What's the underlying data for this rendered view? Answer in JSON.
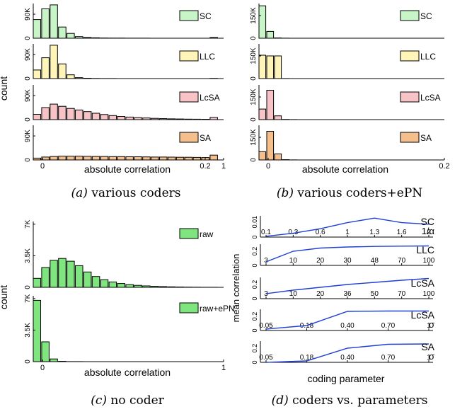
{
  "captions": {
    "a": {
      "letter": "(a)",
      "text": "various coders"
    },
    "b": {
      "letter": "(b)",
      "text": "various coders+ePN"
    },
    "c": {
      "letter": "(c)",
      "text": "no coder"
    },
    "d": {
      "letter": "(d)",
      "text": "coders vs. parameters"
    }
  },
  "chart_data": [
    {
      "id": "a",
      "type": "bar",
      "xlabel": "absolute correlation",
      "ylabel": "count",
      "x_ticks": [
        "0",
        "0.2",
        "1"
      ],
      "panels": [
        {
          "name": "SC",
          "color": "#c8f5c8",
          "ylim": [
            0,
            130000
          ],
          "y_tick_labels": [
            "0",
            "90K"
          ],
          "y_tick_values": [
            0,
            90000
          ],
          "values": [
            70000,
            110000,
            125000,
            42000,
            18000,
            6000,
            3000,
            1500,
            900,
            600,
            400,
            300,
            200,
            150,
            100,
            80,
            60,
            50,
            40,
            30,
            20,
            3000
          ]
        },
        {
          "name": "LLC",
          "color": "#fff5b8",
          "ylim": [
            0,
            130000
          ],
          "y_tick_labels": [
            "0",
            "90K"
          ],
          "y_tick_values": [
            0,
            90000
          ],
          "values": [
            32000,
            78000,
            125000,
            55000,
            14000,
            3500,
            1200,
            600,
            300,
            150,
            100,
            80,
            60,
            40,
            30,
            20,
            15,
            10,
            8,
            5,
            3,
            800
          ]
        },
        {
          "name": "LcSA",
          "color": "#f7c3c6",
          "ylim": [
            0,
            130000
          ],
          "y_tick_labels": [
            "0",
            "90K"
          ],
          "y_tick_values": [
            0,
            90000
          ],
          "values": [
            20000,
            45000,
            58000,
            50000,
            42000,
            36000,
            30000,
            24000,
            19000,
            15000,
            12000,
            9500,
            7500,
            6000,
            4800,
            3800,
            3000,
            2400,
            1900,
            1500,
            1200,
            8000
          ]
        },
        {
          "name": "SA",
          "color": "#f5bf8d",
          "ylim": [
            0,
            130000
          ],
          "y_tick_labels": [
            "0",
            "90K"
          ],
          "y_tick_values": [
            0,
            90000
          ],
          "values": [
            7000,
            11000,
            13000,
            14000,
            14000,
            14000,
            13500,
            13000,
            13000,
            12500,
            12500,
            12000,
            12000,
            11500,
            11000,
            11000,
            10500,
            10000,
            10000,
            9500,
            9000,
            18000
          ]
        }
      ]
    },
    {
      "id": "b",
      "type": "bar",
      "xlabel": "absolute correlation",
      "x_ticks": [
        "0",
        "0.2"
      ],
      "panels": [
        {
          "name": "SC",
          "color": "#c8f5c8",
          "ylim": [
            0,
            230000
          ],
          "y_tick_labels": [
            "0",
            "150K"
          ],
          "y_tick_values": [
            0,
            150000
          ],
          "values": [
            215000,
            45000,
            2000,
            300,
            100,
            50,
            20,
            10,
            5,
            0,
            0,
            0,
            0,
            0,
            0,
            0,
            0,
            0,
            0,
            0,
            0,
            0,
            0,
            0
          ]
        },
        {
          "name": "LLC",
          "color": "#fff5b8",
          "ylim": [
            0,
            230000
          ],
          "y_tick_labels": [
            "0",
            "150K"
          ],
          "y_tick_values": [
            0,
            150000
          ],
          "values": [
            155000,
            150000,
            150000,
            300,
            100,
            50,
            20,
            10,
            5,
            0,
            0,
            0,
            0,
            0,
            0,
            0,
            0,
            0,
            0,
            0,
            0,
            0,
            0,
            0
          ]
        },
        {
          "name": "LcSA",
          "color": "#f7c3c6",
          "ylim": [
            0,
            230000
          ],
          "y_tick_labels": [
            "0",
            "150K"
          ],
          "y_tick_values": [
            0,
            150000
          ],
          "values": [
            70000,
            195000,
            25000,
            1500,
            300,
            100,
            50,
            20,
            10,
            0,
            0,
            0,
            0,
            0,
            0,
            0,
            0,
            0,
            0,
            0,
            0,
            0,
            0,
            0
          ]
        },
        {
          "name": "SA",
          "color": "#f5bf8d",
          "ylim": [
            0,
            230000
          ],
          "y_tick_labels": [
            "0",
            "150K"
          ],
          "y_tick_values": [
            0,
            150000
          ],
          "values": [
            55000,
            190000,
            40000,
            2000,
            400,
            100,
            50,
            20,
            10,
            0,
            0,
            0,
            0,
            0,
            0,
            0,
            0,
            0,
            0,
            0,
            0,
            0,
            0,
            0
          ]
        }
      ]
    },
    {
      "id": "c",
      "type": "bar",
      "xlabel": "absolute correlation",
      "ylabel": "count",
      "x_ticks": [
        "0",
        "1"
      ],
      "panels": [
        {
          "name": "raw",
          "color": "#7fe67f",
          "ylim": [
            0,
            7300
          ],
          "y_tick_labels": [
            "0",
            "3.5K",
            "7K"
          ],
          "y_tick_values": [
            0,
            3500,
            7000
          ],
          "values": [
            1000,
            2200,
            3000,
            3200,
            2900,
            2400,
            1700,
            1200,
            850,
            600,
            420,
            300,
            220,
            160,
            110,
            80,
            55,
            40,
            25,
            15,
            10,
            5,
            3,
            2,
            1
          ]
        },
        {
          "name": "raw+ePN",
          "color": "#7fe67f",
          "ylim": [
            0,
            7300
          ],
          "y_tick_labels": [
            "0",
            "3.5K",
            "7K"
          ],
          "y_tick_values": [
            0,
            3500,
            7000
          ],
          "values": [
            6800,
            2200,
            300,
            40,
            10,
            5,
            2,
            1,
            0,
            0,
            0,
            0,
            0,
            0,
            0,
            0,
            0,
            0,
            0,
            0,
            0,
            0,
            0,
            0,
            0
          ]
        }
      ]
    },
    {
      "id": "d",
      "type": "line",
      "xlabel": "coding parameter",
      "ylabel": "mean correlation",
      "color": "#1f3fd6",
      "panels": [
        {
          "name": "SC",
          "param_label": "1/α",
          "y_tick_labels": [
            "0",
            "0.01"
          ],
          "y_tick_values": [
            0,
            0.01
          ],
          "ylim": [
            0,
            0.014
          ],
          "ticks": [
            "0.1",
            "0.3",
            "0.6",
            "1",
            "1.3",
            "1.6",
            "2"
          ],
          "x": [
            0.1,
            0.3,
            0.6,
            1,
            1.3,
            1.6,
            2
          ],
          "values": [
            0.0005,
            0.0025,
            0.0055,
            0.0095,
            0.0125,
            0.0095,
            0.0085
          ]
        },
        {
          "name": "LLC",
          "y_tick_labels": [
            "0",
            "0.2"
          ],
          "y_tick_values": [
            0,
            0.2
          ],
          "ylim": [
            0,
            0.3
          ],
          "ticks": [
            "3",
            "10",
            "20",
            "30",
            "48",
            "70",
            "100"
          ],
          "x": [
            3,
            10,
            20,
            30,
            48,
            70,
            100
          ],
          "values": [
            0.05,
            0.2,
            0.245,
            0.26,
            0.268,
            0.272,
            0.275
          ]
        },
        {
          "name": "LcSA",
          "y_tick_labels": [
            "0",
            "0.2"
          ],
          "y_tick_values": [
            0,
            0.2
          ],
          "ylim": [
            0,
            0.3
          ],
          "ticks": [
            "3",
            "10",
            "20",
            "36",
            "50",
            "70",
            "100"
          ],
          "x": [
            3,
            10,
            20,
            36,
            50,
            70,
            100
          ],
          "values": [
            0.07,
            0.12,
            0.16,
            0.2,
            0.23,
            0.26,
            0.285
          ]
        },
        {
          "name": "LcSA",
          "param_label": "σ",
          "y_tick_labels": [
            "0",
            "0.2"
          ],
          "y_tick_values": [
            0,
            0.2
          ],
          "ylim": [
            0,
            0.3
          ],
          "ticks": [
            "0.05",
            "0.18",
            "0.40",
            "0.70",
            "1"
          ],
          "x": [
            0.05,
            0.18,
            0.4,
            0.7,
            1
          ],
          "values": [
            0.02,
            0.07,
            0.27,
            0.275,
            0.275
          ]
        },
        {
          "name": "SA",
          "param_label": "σ",
          "y_tick_labels": [
            "0",
            "0.2"
          ],
          "y_tick_values": [
            0,
            0.2
          ],
          "ylim": [
            0,
            0.3
          ],
          "ticks": [
            "0.05",
            "0.18",
            "0.40",
            "0.70",
            "1"
          ],
          "x": [
            0.05,
            0.18,
            0.4,
            0.7,
            1
          ],
          "values": [
            0.0,
            0.02,
            0.2,
            0.255,
            0.26
          ]
        }
      ]
    }
  ]
}
